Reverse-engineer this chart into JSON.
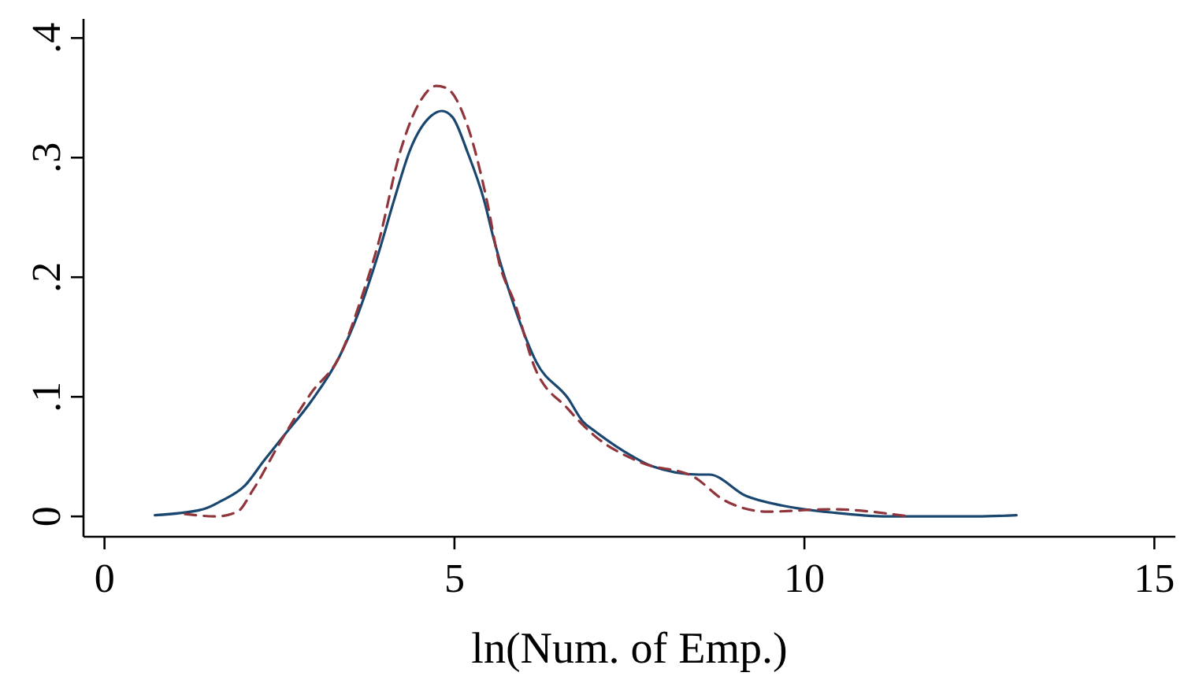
{
  "chart_data": {
    "type": "line",
    "xlabel": "ln(Num. of Emp.)",
    "xlim": [
      -0.3,
      15.3
    ],
    "ylim": [
      -0.017,
      0.416
    ],
    "xticks": [
      0,
      5,
      10,
      15
    ],
    "yticks": [
      {
        "value": 0,
        "label": "0"
      },
      {
        "value": 0.1,
        "label": ".1"
      },
      {
        "value": 0.2,
        "label": ".2"
      },
      {
        "value": 0.3,
        "label": ".3"
      },
      {
        "value": 0.4,
        "label": ".4"
      }
    ],
    "grid": false,
    "marker": "none",
    "series": [
      {
        "color": "#1a476f",
        "line_style": "solid",
        "x": [
          0.72,
          1.41,
          1.67,
          2.01,
          2.27,
          2.57,
          2.95,
          3.36,
          3.62,
          3.92,
          4.14,
          4.37,
          4.67,
          4.82,
          4.97,
          5.19,
          5.42,
          5.57,
          5.87,
          6.17,
          6.62,
          6.84,
          6.99,
          7.52,
          7.82,
          8.49,
          8.64,
          9.17,
          9.69,
          10.44,
          11.19,
          12.46,
          13.03
        ],
        "values": [
          0.001,
          0.006,
          0.013,
          0.026,
          0.046,
          0.068,
          0.096,
          0.134,
          0.169,
          0.221,
          0.265,
          0.307,
          0.335,
          0.339,
          0.334,
          0.304,
          0.265,
          0.23,
          0.173,
          0.129,
          0.099,
          0.079,
          0.072,
          0.051,
          0.042,
          0.035,
          0.035,
          0.017,
          0.009,
          0.003,
          0,
          0,
          0.001
        ]
      },
      {
        "color": "#90353b",
        "line_style": "dashed",
        "x": [
          1.15,
          1.6,
          1.9,
          2.12,
          2.5,
          2.95,
          3.36,
          3.69,
          3.92,
          4.22,
          4.52,
          4.74,
          4.89,
          5.19,
          5.46,
          5.64,
          5.87,
          6.13,
          6.62,
          6.99,
          7.67,
          8.42,
          8.87,
          9.47,
          10.37,
          11.49
        ],
        "values": [
          0.002,
          0,
          0.004,
          0.022,
          0.061,
          0.103,
          0.134,
          0.186,
          0.23,
          0.304,
          0.348,
          0.36,
          0.358,
          0.326,
          0.265,
          0.212,
          0.177,
          0.127,
          0.09,
          0.068,
          0.045,
          0.033,
          0.013,
          0.004,
          0.006,
          0
        ]
      }
    ]
  }
}
